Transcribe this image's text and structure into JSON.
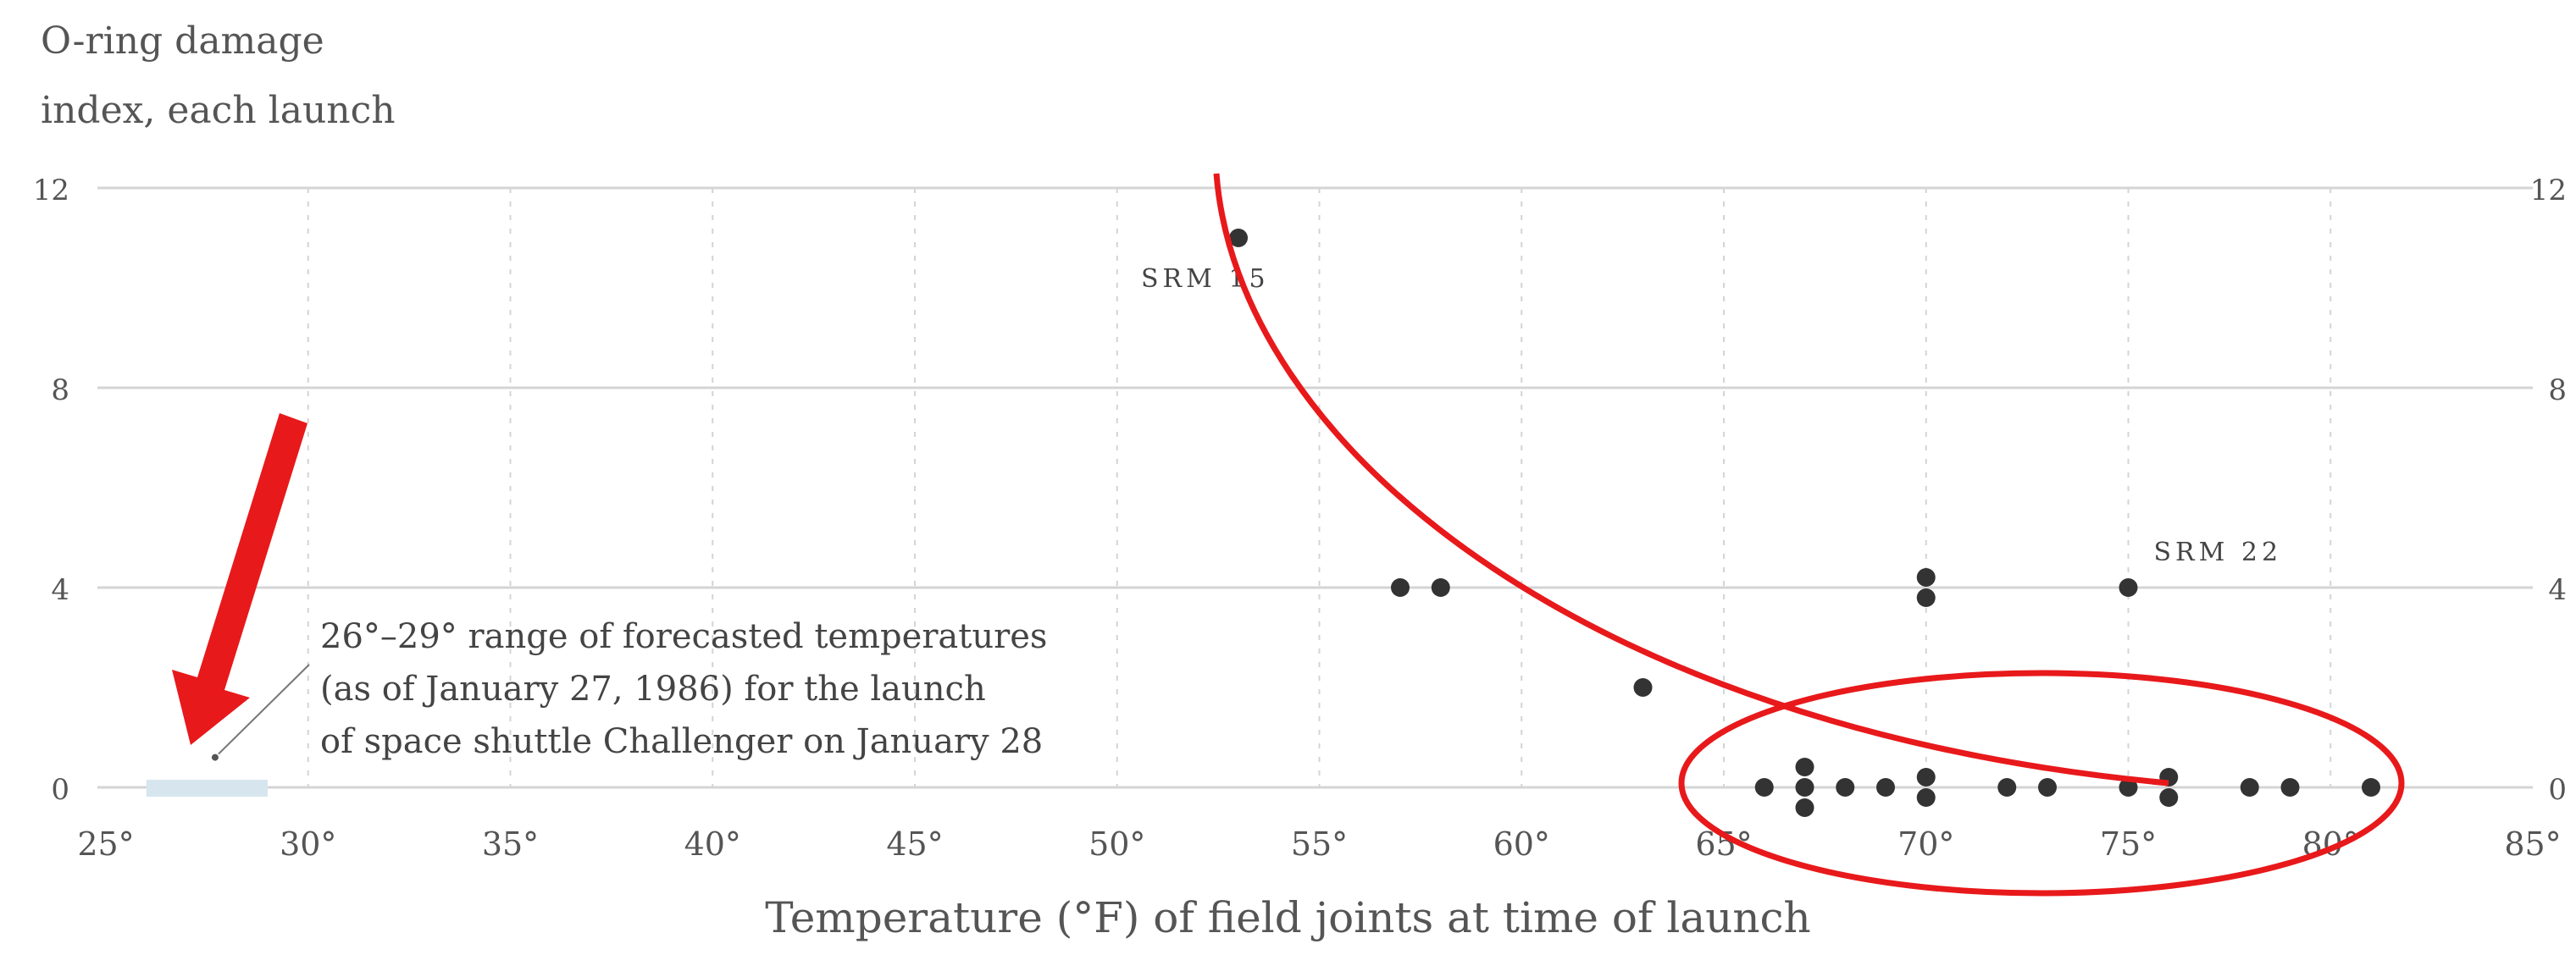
{
  "chart_data": {
    "type": "scatter",
    "title": "",
    "ylabel_lines": [
      "O-ring damage",
      "index, each launch"
    ],
    "xlabel": "Temperature (°F) of field joints at time of launch",
    "xlim": [
      25,
      85
    ],
    "ylim": [
      0,
      12
    ],
    "xticks": [
      25,
      30,
      35,
      40,
      45,
      50,
      55,
      60,
      65,
      70,
      75,
      80,
      85
    ],
    "xtick_labels": [
      "25°",
      "30°",
      "35°",
      "40°",
      "45°",
      "50°",
      "55°",
      "60°",
      "65°",
      "70°",
      "75°",
      "80°",
      "85°"
    ],
    "yticks": [
      0,
      4,
      8,
      12
    ],
    "ytick_labels": [
      "0",
      "4",
      "8",
      "12"
    ],
    "grid": true,
    "points": [
      {
        "x": 53,
        "y": 11
      },
      {
        "x": 57,
        "y": 4
      },
      {
        "x": 58,
        "y": 4
      },
      {
        "x": 63,
        "y": 2
      },
      {
        "x": 70,
        "y": 4
      },
      {
        "x": 70,
        "y": 4
      },
      {
        "x": 75,
        "y": 4
      },
      {
        "x": 66,
        "y": 0
      },
      {
        "x": 67,
        "y": 0
      },
      {
        "x": 67,
        "y": 0
      },
      {
        "x": 67,
        "y": 0
      },
      {
        "x": 68,
        "y": 0
      },
      {
        "x": 69,
        "y": 0
      },
      {
        "x": 70,
        "y": 0
      },
      {
        "x": 70,
        "y": 0
      },
      {
        "x": 72,
        "y": 0
      },
      {
        "x": 73,
        "y": 0
      },
      {
        "x": 75,
        "y": 0
      },
      {
        "x": 76,
        "y": 0
      },
      {
        "x": 76,
        "y": 0
      },
      {
        "x": 78,
        "y": 0
      },
      {
        "x": 79,
        "y": 0
      },
      {
        "x": 81,
        "y": 0
      }
    ],
    "point_labels": [
      {
        "x": 53,
        "y": 11,
        "text": "SRM 15"
      },
      {
        "x": 75,
        "y": 4,
        "text": "SRM 22"
      }
    ],
    "forecast_range": [
      26,
      29
    ],
    "annotation_lines": [
      "26°–29° range of forecasted temperatures",
      "(as of January 27, 1986) for the launch",
      "of space shuttle Challenger on January 28"
    ],
    "colors": {
      "points": "#333333",
      "grid": "#d4d4d4",
      "markup": "#e8191b",
      "forecast_band": "#d7e6ee"
    }
  }
}
